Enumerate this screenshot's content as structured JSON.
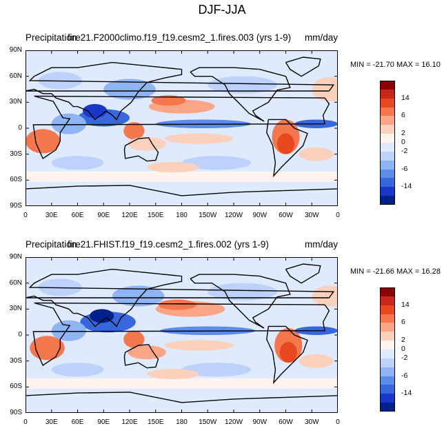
{
  "figure": {
    "title": "DJF-JJA"
  },
  "panels": [
    {
      "title_left": "Precipitation",
      "title_overlay": "fire21.F2000climo.f19_f19.cesm2_1.fires.003 (yrs 1-9)",
      "units": "mm/day",
      "stats": "MIN = -21.70 MAX =  16.10"
    },
    {
      "title_left": "Precipitation",
      "title_overlay": "fire21.FHIST.f19_f19.cesm2_1.fires.002 (yrs 1-9)",
      "units": "mm/day",
      "stats": "MIN = -21.66 MAX =  16.28"
    }
  ],
  "chart_data": [
    {
      "type": "heatmap",
      "title": "Precipitation  fire21.F2000climo.f19_f19.cesm2_1.fires.003 (yrs 1-9)",
      "units": "mm/day",
      "x_ticks": [
        "0",
        "30E",
        "60E",
        "90E",
        "120E",
        "150E",
        "180",
        "150W",
        "120W",
        "90W",
        "60W",
        "30W",
        "0"
      ],
      "y_ticks": [
        "90N",
        "60N",
        "30N",
        "0",
        "30S",
        "60S",
        "90S"
      ],
      "xlim": [
        0,
        360
      ],
      "ylim": [
        -90,
        90
      ],
      "min": -21.7,
      "max": 16.1,
      "colorbar_labels": [
        "14",
        "6",
        "2",
        "0",
        "-2",
        "-6",
        "-14"
      ]
    },
    {
      "type": "heatmap",
      "title": "Precipitation  fire21.FHIST.f19_f19.cesm2_1.fires.002 (yrs 1-9)",
      "units": "mm/day",
      "x_ticks": [
        "0",
        "30E",
        "60E",
        "90E",
        "120E",
        "150E",
        "180",
        "150W",
        "120W",
        "90W",
        "60W",
        "30W",
        "0"
      ],
      "y_ticks": [
        "90N",
        "60N",
        "30N",
        "0",
        "30S",
        "60S",
        "90S"
      ],
      "xlim": [
        0,
        360
      ],
      "ylim": [
        -90,
        90
      ],
      "min": -21.66,
      "max": 16.28,
      "colorbar_labels": [
        "14",
        "6",
        "2",
        "0",
        "-2",
        "-6",
        "-14"
      ]
    }
  ],
  "colorbar": {
    "colors": [
      "#8b0000",
      "#c8261a",
      "#e8481f",
      "#f5774d",
      "#f9a586",
      "#fbd0bd",
      "#fff3ee",
      "#dfeaff",
      "#bcd2fb",
      "#8fb4f3",
      "#5d8ce8",
      "#3766dd",
      "#1738c9",
      "#00208a"
    ],
    "labels": [
      "14",
      "6",
      "2",
      "0",
      "-2",
      "-6",
      "-14"
    ]
  }
}
